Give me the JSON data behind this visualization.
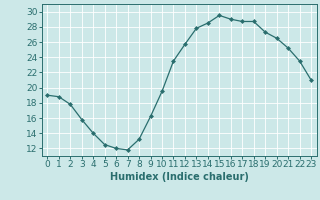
{
  "x": [
    0,
    1,
    2,
    3,
    4,
    5,
    6,
    7,
    8,
    9,
    10,
    11,
    12,
    13,
    14,
    15,
    16,
    17,
    18,
    19,
    20,
    21,
    22,
    23
  ],
  "y": [
    19.0,
    18.8,
    17.8,
    15.8,
    14.0,
    12.5,
    12.0,
    11.8,
    13.2,
    16.2,
    19.5,
    23.5,
    25.7,
    27.8,
    28.5,
    29.5,
    29.0,
    28.7,
    28.7,
    27.3,
    26.5,
    25.2,
    23.5,
    21.0
  ],
  "line_color": "#2a6e6e",
  "marker": "D",
  "marker_size": 2.0,
  "bg_color": "#cce8e8",
  "grid_color": "#ffffff",
  "xlabel": "Humidex (Indice chaleur)",
  "ylim": [
    11,
    31
  ],
  "yticks": [
    12,
    14,
    16,
    18,
    20,
    22,
    24,
    26,
    28,
    30
  ],
  "xticks": [
    0,
    1,
    2,
    3,
    4,
    5,
    6,
    7,
    8,
    9,
    10,
    11,
    12,
    13,
    14,
    15,
    16,
    17,
    18,
    19,
    20,
    21,
    22,
    23
  ],
  "tick_color": "#2a6e6e",
  "label_fontsize": 7,
  "tick_fontsize": 6.5
}
